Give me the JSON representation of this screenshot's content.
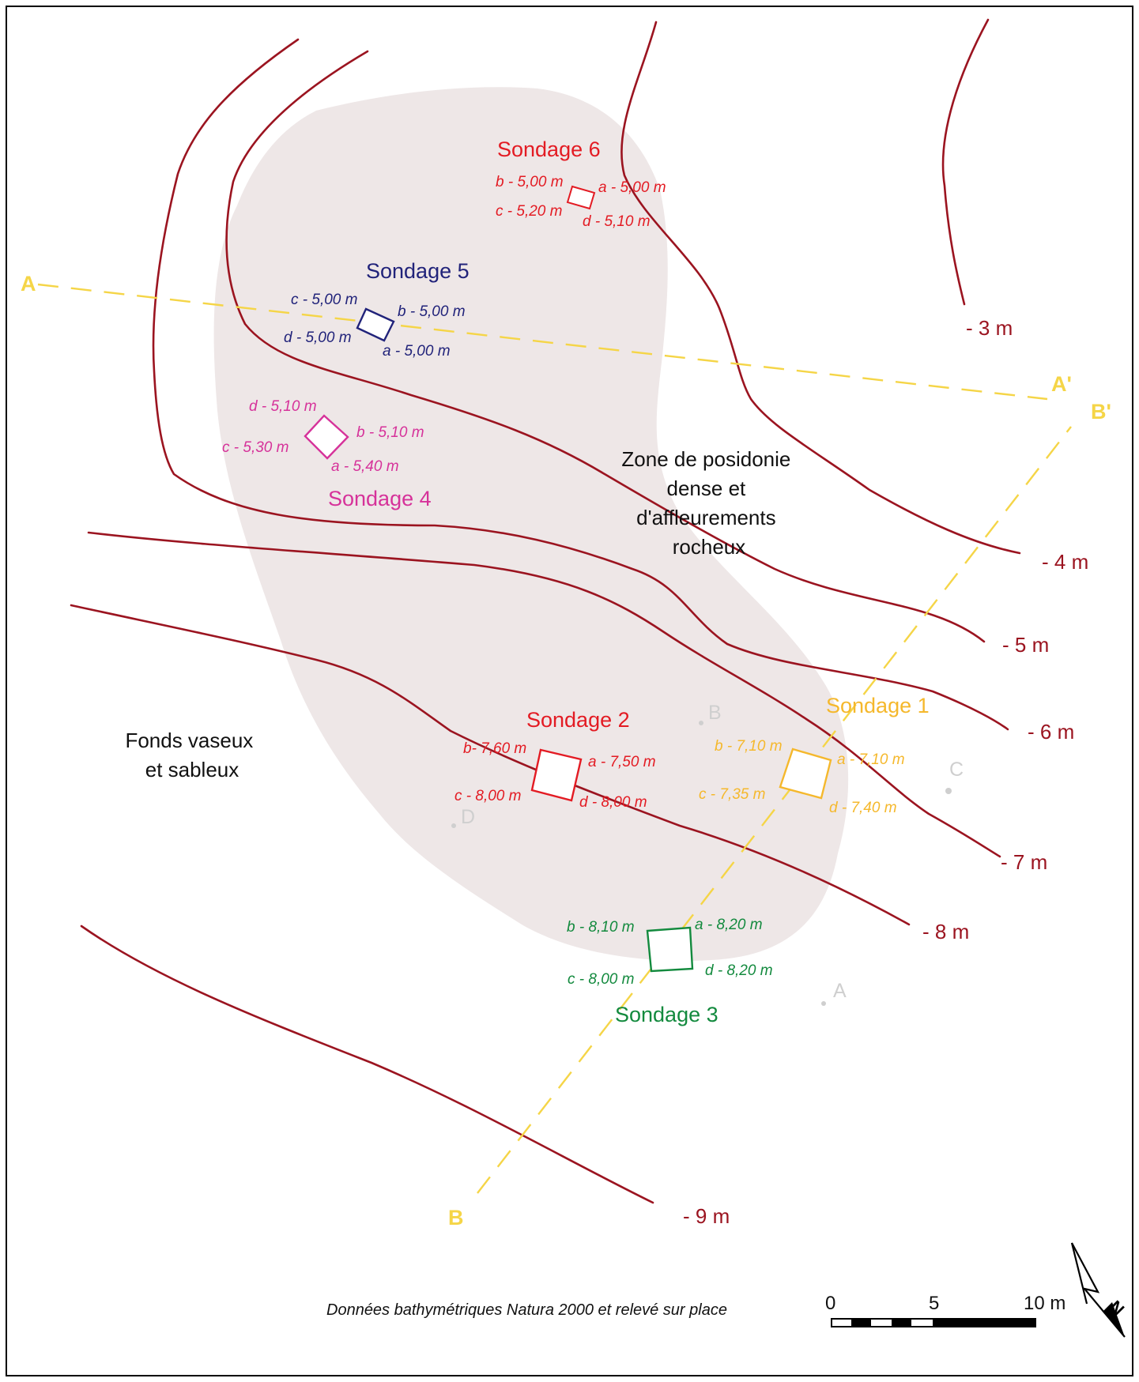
{
  "colors": {
    "contour": "#9b1420",
    "zone_fill": "#eee7e7",
    "profile": "#f5d547",
    "sondage1": "#f5b82c",
    "sondage2": "#e31b23",
    "sondage3": "#138a3e",
    "sondage4": "#d6329a",
    "sondage5": "#21237a",
    "sondage6": "#e31b23"
  },
  "contours": [
    "- 3 m",
    "- 4 m",
    "- 5 m",
    "- 6 m",
    "- 7 m",
    "- 8 m",
    "- 9 m"
  ],
  "profiles": {
    "a_start": "A",
    "a_end": "A'",
    "b_start": "B",
    "b_end": "B'"
  },
  "zones": {
    "posidonie": [
      "Zone de posidonie",
      "dense et",
      "d'affleurements",
      "rocheux"
    ],
    "fonds": [
      "Fonds vaseux",
      "et sableux"
    ]
  },
  "sondages": [
    {
      "title": "Sondage 6",
      "a": "a - 5,00 m",
      "b": "b - 5,00 m",
      "c": "c - 5,20 m",
      "d": "d - 5,10 m"
    },
    {
      "title": "Sondage 5",
      "a": "a - 5,00 m",
      "b": "b - 5,00 m",
      "c": "c - 5,00 m",
      "d": "d - 5,00 m"
    },
    {
      "title": "Sondage 4",
      "a": "a - 5,40 m",
      "b": "b - 5,10 m",
      "c": "c - 5,30 m",
      "d": "d - 5,10 m"
    },
    {
      "title": "Sondage 2",
      "a": "a - 7,50 m",
      "b": "b- 7,60 m",
      "c": "c - 8,00 m",
      "d": "d - 8,00 m"
    },
    {
      "title": "Sondage 1",
      "a": "a - 7,10 m",
      "b": "b - 7,10 m",
      "c": "c - 7,35 m",
      "d": "d - 7,40 m"
    },
    {
      "title": "Sondage 3",
      "a": "a - 8,20 m",
      "b": "b - 8,10 m",
      "c": "c - 8,00 m",
      "d": "d - 8,20 m"
    }
  ],
  "reference_points": [
    "A",
    "B",
    "C",
    "D"
  ],
  "source": "Données bathymétriques Natura 2000 et relevé sur place",
  "scale": {
    "zero": "0",
    "mid": "5",
    "max": "10 m"
  },
  "north_arrow": "N"
}
